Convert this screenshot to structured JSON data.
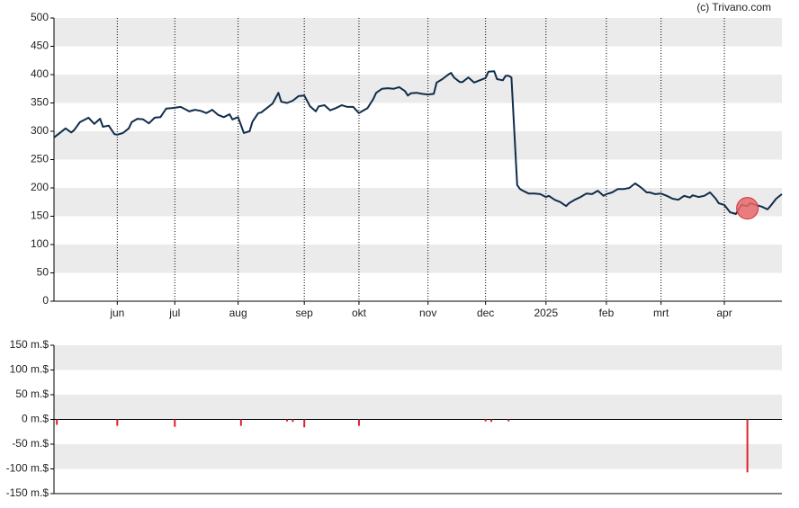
{
  "source": "(c) Trivano.com",
  "chart_data": [
    {
      "type": "line",
      "color": "#102d4a",
      "grid_bands": true,
      "band_color": "#ebebeb",
      "xgrid": true,
      "xlim": [
        0,
        253
      ],
      "ylim": [
        0,
        500
      ],
      "yticks": [
        0,
        50,
        100,
        150,
        200,
        250,
        300,
        350,
        400,
        450,
        500
      ],
      "xticks": [
        {
          "value": 22,
          "label": "jun"
        },
        {
          "value": 42,
          "label": "jul"
        },
        {
          "value": 64,
          "label": "aug"
        },
        {
          "value": 87,
          "label": "sep"
        },
        {
          "value": 106,
          "label": "okt"
        },
        {
          "value": 130,
          "label": "nov"
        },
        {
          "value": 150,
          "label": "dec"
        },
        {
          "value": 171,
          "label": "2025"
        },
        {
          "value": 192,
          "label": "feb"
        },
        {
          "value": 211,
          "label": "mrt"
        },
        {
          "value": 233,
          "label": "apr"
        }
      ],
      "x": [
        0,
        2,
        4,
        6,
        7,
        9,
        12,
        14,
        16,
        17,
        19,
        21,
        22,
        24,
        26,
        27,
        29,
        31,
        33,
        35,
        37,
        39,
        41,
        44,
        46,
        47,
        49,
        51,
        53,
        55,
        57,
        59,
        61,
        62,
        64,
        66,
        68,
        69,
        71,
        72,
        74,
        76,
        78,
        79,
        81,
        83,
        85,
        87,
        89,
        91,
        92,
        94,
        96,
        98,
        100,
        102,
        104,
        106,
        107,
        109,
        111,
        112,
        114,
        116,
        118,
        120,
        122,
        123,
        124,
        126,
        128,
        130,
        132,
        133,
        135,
        137,
        138,
        139,
        141,
        142,
        144,
        146,
        148,
        150,
        151,
        153,
        154,
        156,
        157,
        158,
        159,
        161,
        162,
        163,
        165,
        167,
        169,
        171,
        172,
        174,
        176,
        178,
        179,
        181,
        183,
        185,
        187,
        189,
        191,
        192,
        194,
        196,
        198,
        200,
        202,
        204,
        206,
        207,
        209,
        211,
        213,
        215,
        217,
        219,
        221,
        222,
        224,
        226,
        228,
        230,
        231,
        233,
        235,
        237,
        239,
        241,
        242,
        244,
        246,
        248,
        249,
        251,
        253
      ],
      "values": [
        289,
        297,
        305,
        298,
        302,
        316,
        324,
        313,
        322,
        308,
        310,
        295,
        294,
        297,
        305,
        316,
        322,
        321,
        314,
        324,
        325,
        340,
        341,
        343,
        338,
        335,
        338,
        336,
        332,
        338,
        329,
        325,
        330,
        321,
        325,
        297,
        300,
        317,
        332,
        333,
        341,
        349,
        368,
        352,
        350,
        354,
        362,
        363,
        344,
        335,
        344,
        346,
        337,
        341,
        346,
        343,
        343,
        332,
        335,
        341,
        357,
        368,
        375,
        376,
        375,
        378,
        371,
        363,
        367,
        368,
        366,
        365,
        366,
        386,
        392,
        400,
        403,
        395,
        387,
        387,
        395,
        386,
        390,
        394,
        405,
        406,
        392,
        390,
        398,
        398,
        395,
        205,
        198,
        195,
        190,
        190,
        189,
        184,
        186,
        179,
        175,
        168,
        173,
        179,
        184,
        190,
        189,
        195,
        186,
        189,
        192,
        198,
        198,
        200,
        208,
        201,
        192,
        192,
        189,
        190,
        186,
        181,
        179,
        186,
        183,
        187,
        184,
        186,
        192,
        181,
        173,
        170,
        157,
        154,
        170,
        168,
        173,
        170,
        167,
        162,
        168,
        181,
        189
      ],
      "highlight": {
        "x": 241,
        "y": 164,
        "color": "#e8696b"
      }
    },
    {
      "type": "bar",
      "color": "#e0202a",
      "grid_bands": true,
      "band_color": "#ebebeb",
      "xlim": [
        0,
        253
      ],
      "ylim": [
        -150,
        150
      ],
      "yticks": [
        {
          "value": -150,
          "label": "-150 m.$"
        },
        {
          "value": -100,
          "label": "-100 m.$"
        },
        {
          "value": -50,
          "label": "-50 m.$"
        },
        {
          "value": 0,
          "label": "0 m.$"
        },
        {
          "value": 50,
          "label": "50 m.$"
        },
        {
          "value": 100,
          "label": "100 m.$"
        },
        {
          "value": 150,
          "label": "150 m.$"
        }
      ],
      "x": [
        1,
        22,
        42,
        65,
        81,
        83,
        87,
        106,
        150,
        152,
        158,
        241
      ],
      "values": [
        -11,
        -13,
        -15,
        -13,
        -4,
        -5,
        -16,
        -13,
        -4,
        -5,
        -4,
        -107
      ]
    }
  ]
}
